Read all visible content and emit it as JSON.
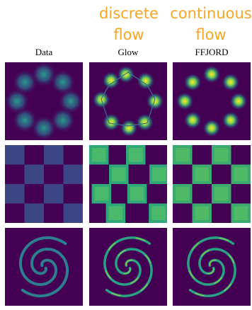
{
  "header": {
    "discrete": "discrete flow",
    "continuous": "continuous flow"
  },
  "columns": [
    "Data",
    "Glow",
    "FFJORD"
  ]
}
